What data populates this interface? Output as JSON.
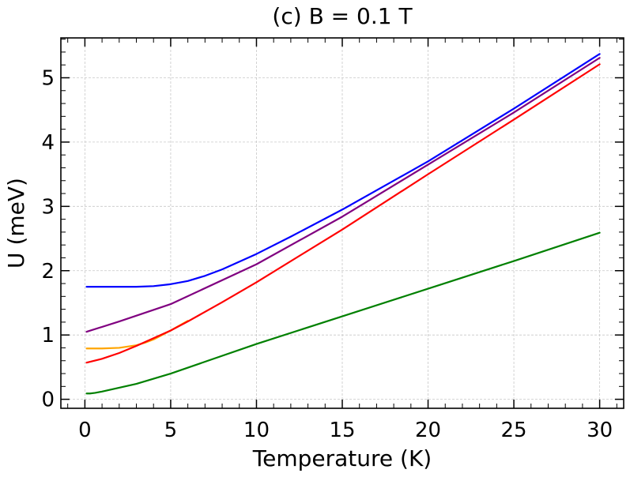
{
  "chart_data": {
    "type": "line",
    "title": "(c) B = 0.1 T",
    "xlabel": "Temperature (K)",
    "ylabel": "U (meV)",
    "xlim": [
      -1.4,
      31.4
    ],
    "ylim": [
      -0.14,
      5.62
    ],
    "xticks": [
      0,
      5,
      10,
      15,
      20,
      25,
      30
    ],
    "xtick_labels": [
      "0",
      "5",
      "10",
      "15",
      "20",
      "25",
      "30"
    ],
    "yticks": [
      0,
      1,
      2,
      3,
      4,
      5
    ],
    "ytick_labels": [
      "0",
      "1",
      "2",
      "3",
      "4",
      "5"
    ],
    "grid": true,
    "legend": "none",
    "series": [
      {
        "color": "#0000ff",
        "x": [
          0.1,
          1,
          2,
          3,
          4,
          5,
          6,
          7,
          8,
          10,
          12,
          15,
          20,
          25,
          30
        ],
        "y": [
          1.75,
          1.75,
          1.75,
          1.75,
          1.76,
          1.79,
          1.84,
          1.92,
          2.02,
          2.26,
          2.53,
          2.95,
          3.7,
          4.52,
          5.37
        ]
      },
      {
        "color": "#800080",
        "x": [
          0.1,
          2,
          5,
          10,
          15,
          20,
          25,
          30
        ],
        "y": [
          1.05,
          1.21,
          1.48,
          2.1,
          2.84,
          3.65,
          4.46,
          5.31
        ]
      },
      {
        "color": "#ffa500",
        "x": [
          0.1,
          1,
          2,
          3,
          3.5,
          4,
          5,
          6
        ],
        "y": [
          0.79,
          0.79,
          0.8,
          0.84,
          0.88,
          0.93,
          1.07,
          1.22
        ]
      },
      {
        "color": "#ff0000",
        "x": [
          0.1,
          1,
          2,
          3,
          4,
          5,
          6,
          8,
          10,
          15,
          20,
          25,
          30
        ],
        "y": [
          0.57,
          0.63,
          0.72,
          0.83,
          0.95,
          1.07,
          1.21,
          1.51,
          1.82,
          2.64,
          3.5,
          4.35,
          5.21
        ]
      },
      {
        "color": "#008000",
        "x": [
          0.1,
          0.3,
          0.6,
          1,
          2,
          3,
          5,
          10,
          15,
          20,
          25,
          30
        ],
        "y": [
          0.09,
          0.09,
          0.1,
          0.12,
          0.18,
          0.24,
          0.4,
          0.86,
          1.29,
          1.72,
          2.15,
          2.59
        ]
      }
    ]
  }
}
